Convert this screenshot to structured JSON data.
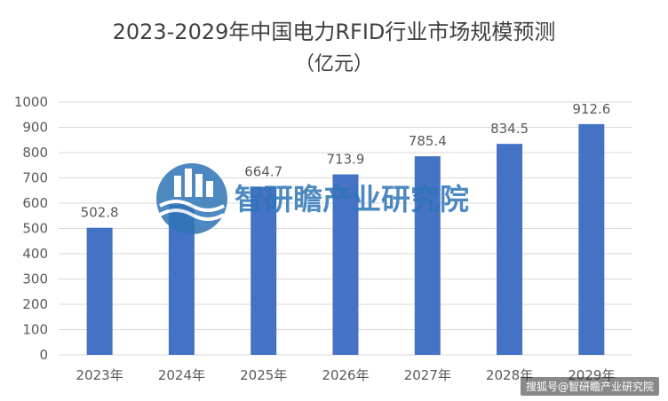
{
  "colors": {
    "bar": "#4472c4",
    "grid": "#d9d9d9",
    "text": "#595959",
    "title": "#404040",
    "watermark": "#2e75b6"
  },
  "watermark": {
    "icon": "institute-logo-icon",
    "text": "智研瞻产业研究院"
  },
  "credit": "搜狐号@智研瞻产业研究院",
  "chart_data": {
    "type": "bar",
    "title": "2023-2029年中国电力RFID行业市场规模预测",
    "subtitle": "（亿元）",
    "xlabel": "",
    "ylabel": "",
    "categories": [
      "2023年",
      "2024年",
      "2025年",
      "2026年",
      "2027年",
      "2028年",
      "2029年"
    ],
    "values": [
      502.8,
      594.5,
      664.7,
      713.9,
      785.4,
      834.5,
      912.6
    ],
    "data_labels": [
      "502.8",
      "",
      "664.7",
      "713.9",
      "785.4",
      "834.5",
      "912.6"
    ],
    "ylim": [
      0,
      1000
    ],
    "yticks": [
      0,
      100,
      200,
      300,
      400,
      500,
      600,
      700,
      800,
      900,
      1000
    ],
    "grid": true,
    "legend": "none"
  }
}
